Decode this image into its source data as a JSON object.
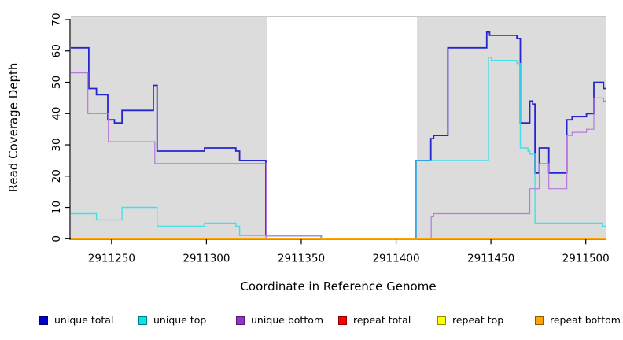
{
  "chart_data": {
    "type": "line",
    "subtype": "step-coverage-plot",
    "title": "",
    "xlabel": "Coordinate in Reference Genome",
    "ylabel": "Read Coverage Depth",
    "xlim": [
      2911228.5,
      2911510.5
    ],
    "ylim": [
      0,
      71
    ],
    "x_ticks": [
      2911250,
      2911300,
      2911350,
      2911400,
      2911450,
      2911500
    ],
    "y_ticks": [
      0,
      10,
      20,
      30,
      40,
      50,
      60,
      70
    ],
    "grid": false,
    "legend_position": "bottom",
    "plot_bg": "#ffffff",
    "shaded_bands": [
      {
        "from": 2911228.5,
        "to": 2911332,
        "color": "#dcdcdc"
      },
      {
        "from": 2911411,
        "to": 2911510.5,
        "color": "#dcdcdc"
      }
    ],
    "border_color": "#909090",
    "axis_color": "#000000",
    "series": [
      {
        "name": "unique total",
        "color": "#2626cf",
        "legend_color": "#0000cd",
        "width": 1.8,
        "opacity": 1,
        "steps": [
          [
            2911228.5,
            61
          ],
          [
            2911238,
            48
          ],
          [
            2911242,
            46
          ],
          [
            2911248,
            38
          ],
          [
            2911251.5,
            37
          ],
          [
            2911255.5,
            41
          ],
          [
            2911272,
            49
          ],
          [
            2911274,
            28
          ],
          [
            2911299,
            29
          ],
          [
            2911315.5,
            28
          ],
          [
            2911317.5,
            25
          ],
          [
            2911331.3,
            1
          ],
          [
            2911360.5,
            0
          ],
          [
            2911410.5,
            25
          ],
          [
            2911418.3,
            32
          ],
          [
            2911419.8,
            33
          ],
          [
            2911427.3,
            61
          ],
          [
            2911447.8,
            66
          ],
          [
            2911449.3,
            65
          ],
          [
            2911463.7,
            64
          ],
          [
            2911465.5,
            37
          ],
          [
            2911470.5,
            44
          ],
          [
            2911472,
            43
          ],
          [
            2911473.2,
            21
          ],
          [
            2911475.5,
            29
          ],
          [
            2911480.5,
            21
          ],
          [
            2911490,
            38
          ],
          [
            2911492.8,
            39
          ],
          [
            2911500.4,
            40
          ],
          [
            2911504.3,
            50
          ],
          [
            2911509.4,
            48
          ]
        ]
      },
      {
        "name": "unique top",
        "color": "#35dfe8",
        "legend_color": "#00e5ee",
        "width": 1.4,
        "opacity": 0.9,
        "steps": [
          [
            2911228.5,
            8
          ],
          [
            2911242,
            6
          ],
          [
            2911255.5,
            10
          ],
          [
            2911274,
            4
          ],
          [
            2911299,
            5
          ],
          [
            2911315.5,
            4
          ],
          [
            2911317.5,
            1
          ],
          [
            2911360.5,
            0
          ],
          [
            2911410.5,
            25
          ],
          [
            2911448.7,
            58
          ],
          [
            2911450.2,
            57
          ],
          [
            2911463.7,
            56
          ],
          [
            2911465.5,
            29
          ],
          [
            2911469.5,
            28
          ],
          [
            2911470.5,
            27
          ],
          [
            2911473.2,
            5
          ],
          [
            2911508.7,
            4
          ]
        ]
      },
      {
        "name": "unique bottom",
        "color": "#b678de",
        "legend_color": "#9932cc",
        "width": 1.2,
        "opacity": 1,
        "steps": [
          [
            2911228.5,
            53
          ],
          [
            2911237.5,
            40
          ],
          [
            2911248.3,
            31
          ],
          [
            2911272.8,
            24
          ],
          [
            2911331.5,
            0
          ],
          [
            2911418.5,
            7
          ],
          [
            2911419.8,
            8
          ],
          [
            2911470.5,
            16
          ],
          [
            2911475.5,
            24
          ],
          [
            2911480.5,
            16
          ],
          [
            2911490,
            33
          ],
          [
            2911492.8,
            34
          ],
          [
            2911500.4,
            35
          ],
          [
            2911504.3,
            45
          ],
          [
            2911509.4,
            44
          ]
        ]
      },
      {
        "name": "repeat total",
        "color": "#ee2222",
        "legend_color": "#ff0000",
        "width": 1.3,
        "opacity": 1,
        "steps": [
          [
            2911228.5,
            0
          ]
        ]
      },
      {
        "name": "repeat top",
        "color": "#ffff00",
        "legend_color": "#ffff00",
        "width": 1.3,
        "opacity": 1,
        "steps": [
          [
            2911228.5,
            0
          ]
        ]
      },
      {
        "name": "repeat bottom",
        "color": "#ffa500",
        "legend_color": "#ffa500",
        "width": 1.6,
        "opacity": 1,
        "steps": [
          [
            2911228.5,
            0
          ]
        ]
      }
    ]
  }
}
